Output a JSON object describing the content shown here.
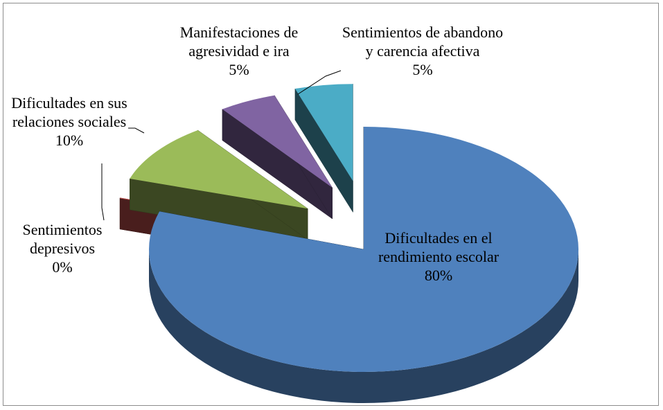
{
  "chart_data": {
    "type": "pie",
    "three_d": true,
    "exploded": true,
    "categories": [
      "Dificultades en el rendimiento escolar",
      "Sentimientos depresivos",
      "Dificultades en sus relaciones sociales",
      "Manifestaciones de agresividad e ira",
      "Sentimientos de abandono y carencia afectiva"
    ],
    "values": [
      80,
      0,
      10,
      5,
      5
    ],
    "value_labels": [
      "80%",
      "0%",
      "10%",
      "5%",
      "5%"
    ],
    "colors": [
      "#4f81bd",
      "#c0504d",
      "#9bbb59",
      "#8064a2",
      "#4bacc6"
    ]
  }
}
